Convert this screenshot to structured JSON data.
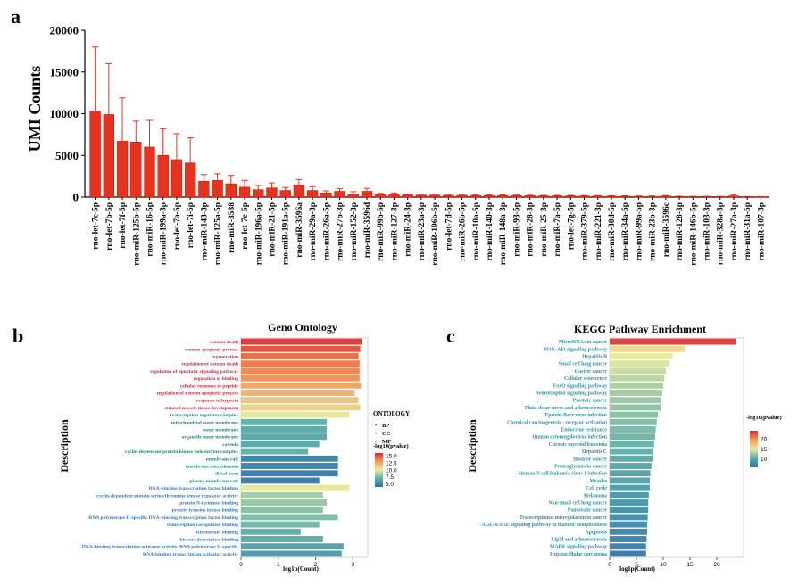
{
  "figure": {
    "panels": [
      {
        "letter": "a"
      },
      {
        "letter": "b"
      },
      {
        "letter": "c"
      }
    ]
  },
  "chart_data": [
    {
      "type": "bar",
      "panel": "a",
      "title": "",
      "ylabel": "UMI Counts",
      "xlabel": "",
      "ylim": [
        0,
        20000
      ],
      "yticks": [
        "0",
        "5000",
        "10000",
        "15000",
        "20000"
      ],
      "bar_color": "#e8321e",
      "error_color": "#e8321e",
      "categories": [
        "rno-let-7c-5p",
        "rno-let-7b-5p",
        "rno-let-7f-5p",
        "rno-miR-125b-5p",
        "rno-miR-16-5p",
        "rno-miR-199a-3p",
        "rno-let-7a-5p",
        "rno-let-7i-5p",
        "rno-miR-143-3p",
        "rno-miR-125a-5p",
        "rno-miR-3588",
        "rno-let-7e-5p",
        "rno-miR-196a-5p",
        "rno-miR-21-5p",
        "rno-miR-191a-5p",
        "rno-miR-3596a",
        "rno-miR-29a-3p",
        "rno-miR-26a-5p",
        "rno-miR-27b-3p",
        "rno-miR-152-3p",
        "rno-miR-3596d",
        "rno-miR-99b-5p",
        "rno-miR-127-3p",
        "rno-miR-24-3p",
        "rno-miR-23a-3p",
        "rno-miR-196b-5p",
        "rno-let-7d-5p",
        "rno-miR-26b-5p",
        "rno-miR-10a-5p",
        "rno-miR-140-3p",
        "rno-miR-148a-3p",
        "rno-miR-93-5p",
        "rno-miR-28-3p",
        "rno-miR-25-3p",
        "rno-miR-7a-5p",
        "rno-let-7g-5p",
        "rno-miR-379-5p",
        "rno-miR-221-3p",
        "rno-miR-30d-5p",
        "rno-miR-34a-5p",
        "rno-miR-99a-5p",
        "rno-miR-23b-3p",
        "rno-miR-3596c",
        "rno-miR-128-3p",
        "rno-miR-146b-5p",
        "rno-miR-103-3p",
        "rno-miR-328a-3p",
        "rno-miR-27a-3p",
        "rno-miR-31a-5p",
        "rno-miR-107-3p"
      ],
      "values": [
        10300,
        9900,
        6700,
        6600,
        6000,
        5000,
        4500,
        4100,
        1900,
        2000,
        1600,
        1200,
        900,
        1100,
        800,
        1400,
        800,
        500,
        700,
        400,
        700,
        300,
        350,
        280,
        260,
        250,
        220,
        220,
        200,
        200,
        190,
        180,
        170,
        160,
        150,
        150,
        140,
        130,
        120,
        110,
        100,
        100,
        130,
        80,
        70,
        70,
        60,
        150,
        50,
        40
      ],
      "errors": [
        7700,
        6100,
        5200,
        2500,
        3200,
        3200,
        3100,
        3000,
        800,
        800,
        1000,
        800,
        500,
        600,
        350,
        700,
        450,
        250,
        300,
        250,
        350,
        150,
        150,
        100,
        100,
        100,
        100,
        100,
        80,
        80,
        80,
        70,
        70,
        60,
        60,
        60,
        50,
        50,
        50,
        50,
        40,
        40,
        60,
        30,
        30,
        30,
        30,
        100,
        20,
        20
      ]
    },
    {
      "type": "bar",
      "orientation": "horizontal",
      "panel": "b",
      "title": "Geno Ontology",
      "xlabel": "log1p(Count)",
      "ylabel": "Description",
      "xlim": [
        0,
        3.4
      ],
      "xticks": [
        "0",
        "1",
        "2",
        "3"
      ],
      "legend": {
        "ontology_title": "ONTOLOGY",
        "ontology_entries": [
          {
            "label": "BP",
            "color": "#d7263d"
          },
          {
            "label": "CC",
            "color": "#17877f"
          },
          {
            "label": "MF",
            "color": "#2e78c7"
          }
        ],
        "color_title": "-log10(pvalue)",
        "color_ticks": [
          "15.0",
          "12.5",
          "10.0",
          "7.5",
          "5.0"
        ],
        "color_range": [
          4,
          16
        ]
      },
      "categories": [
        "neuron death",
        "neuron apoptotic process",
        "regeneration",
        "regulation of neuron death",
        "regulation of apoptotic signaling pathway",
        "regulation of binding",
        "cellular response to peptide",
        "regulation of neuron apoptotic process",
        "response to hypoxia",
        "striated muscle tissue development",
        "transcription regulator complex",
        "mitochondrial outer membrane",
        "outer membrane",
        "organelle outer membrane",
        "caveola",
        "cyclin-dependent protein kinase holoenzyme complex",
        "membrane raft",
        "membrane microdomain",
        "distal axon",
        "plasma membrane raft",
        "DNA-binding transcription factor binding",
        "cyclin-dependent protein serine/threonine kinase regulator activity",
        "protein N-terminus binding",
        "protein tyrosine kinase binding",
        "RNA polymerase II-specific DNA-binding transcription factor binding",
        "transcription coregulator binding",
        "BH domain binding",
        "histone deacetylase binding",
        "DNA-binding transcription activator activity, RNA polymerase II-specific",
        "DNA-binding transcription activator activity"
      ],
      "groups": [
        "BP",
        "BP",
        "BP",
        "BP",
        "BP",
        "BP",
        "BP",
        "BP",
        "BP",
        "BP",
        "CC",
        "CC",
        "CC",
        "CC",
        "CC",
        "CC",
        "CC",
        "CC",
        "CC",
        "CC",
        "MF",
        "MF",
        "MF",
        "MF",
        "MF",
        "MF",
        "MF",
        "MF",
        "MF",
        "MF"
      ],
      "values": [
        3.25,
        3.2,
        3.15,
        3.18,
        3.18,
        3.18,
        3.22,
        3.05,
        3.15,
        3.2,
        2.9,
        2.3,
        2.3,
        2.3,
        2.1,
        1.8,
        2.6,
        2.6,
        2.6,
        2.1,
        2.9,
        2.2,
        2.3,
        2.2,
        2.6,
        2.1,
        1.6,
        2.2,
        2.75,
        2.7
      ],
      "pvalues_log10": [
        15.5,
        14.8,
        14.2,
        13.8,
        13.5,
        13.2,
        12.5,
        12.0,
        11.5,
        11.0,
        10.2,
        7.2,
        7.0,
        6.8,
        7.0,
        7.2,
        5.2,
        5.0,
        5.0,
        4.8,
        10.2,
        8.5,
        8.3,
        8.0,
        7.8,
        7.5,
        7.2,
        7.0,
        6.5,
        6.3
      ]
    },
    {
      "type": "bar",
      "orientation": "horizontal",
      "panel": "c",
      "title": "KEGG Pathway Enrichment",
      "xlabel": "log1p(Count)",
      "ylabel": "Description",
      "xlim": [
        0,
        25
      ],
      "xticks": [
        "0",
        "5",
        "10",
        "15",
        "20"
      ],
      "legend": {
        "color_title": "-log10(pvalue)",
        "color_ticks": [
          "20",
          "15",
          "10"
        ],
        "color_range": [
          6,
          24
        ]
      },
      "categories": [
        "MicroRNAs in cancer",
        "PI3K-Akt signaling pathway",
        "Hepatitis B",
        "Small cell lung cancer",
        "Gastric cancer",
        "Cellular senescence",
        "FoxO signaling pathway",
        "Neurotrophin signaling pathway",
        "Prostate cancer",
        "Fluid shear stress and atherosclerosis",
        "Epstein-Barr virus infection",
        "Chemical carcinogenesis - receptor activation",
        "Endocrine resistance",
        "Human cytomegalovirus infection",
        "Chronic myeloid leukemia",
        "Hepatitis C",
        "Bladder cancer",
        "Proteoglycans in cancer",
        "Human T-cell leukemia virus 1 infection",
        "Measles",
        "Cell cycle",
        "Melanoma",
        "Non-small cell lung cancer",
        "Pancreatic cancer",
        "Transcriptional misregulation in cancer",
        "AGE-RAGE signaling pathway in diabetic complications",
        "Apoptosis",
        "Lipid and atherosclerosis",
        "MAPK signaling pathway",
        "Hepatocellular carcinoma"
      ],
      "values": [
        23.5,
        14.0,
        11.8,
        11.2,
        10.5,
        10.2,
        10.0,
        9.8,
        9.5,
        9.5,
        9.0,
        8.8,
        8.6,
        8.5,
        8.3,
        8.0,
        8.0,
        7.8,
        7.6,
        7.5,
        7.5,
        7.3,
        7.2,
        7.2,
        7.1,
        7.0,
        7.0,
        6.9,
        6.8,
        6.8
      ],
      "pvalues_log10": [
        23.0,
        16.0,
        15.0,
        14.5,
        14.0,
        13.5,
        13.0,
        12.8,
        12.5,
        12.2,
        12.0,
        11.8,
        11.6,
        11.3,
        11.0,
        10.8,
        10.5,
        10.2,
        10.0,
        9.8,
        9.5,
        9.2,
        9.0,
        8.8,
        8.5,
        8.3,
        8.0,
        7.8,
        7.5,
        7.2
      ]
    }
  ]
}
